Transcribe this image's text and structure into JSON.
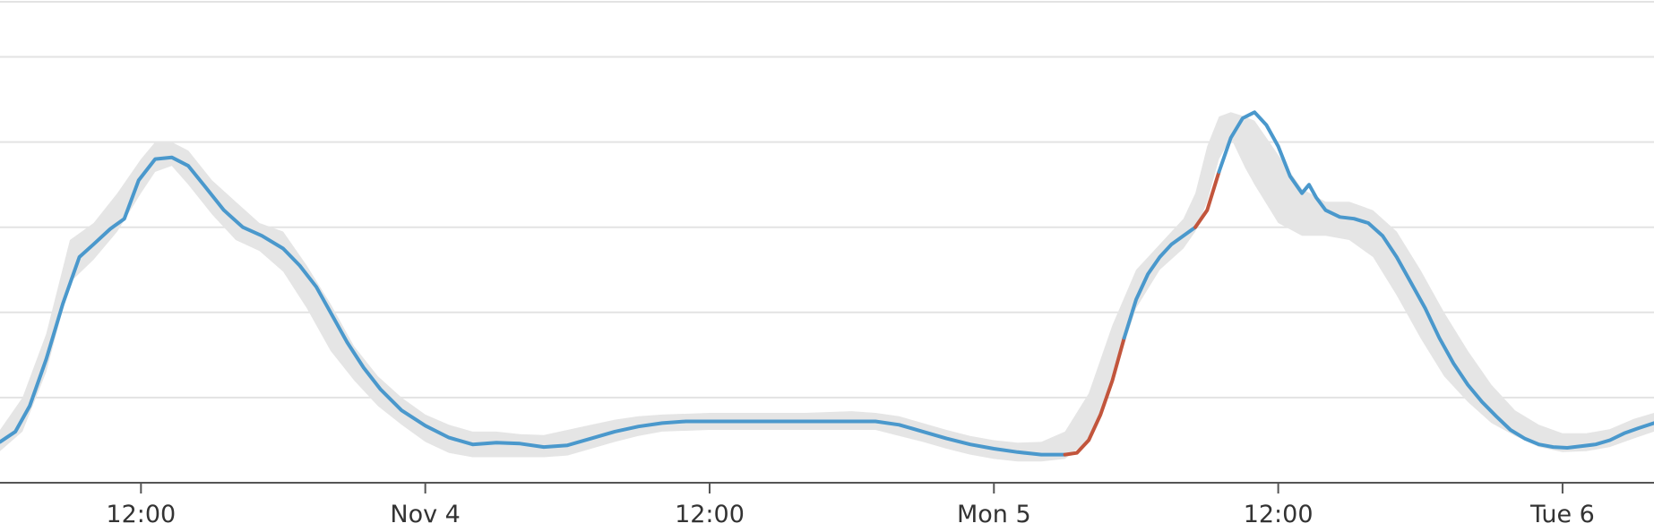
{
  "chart_data": {
    "type": "line",
    "x_unit": "hours",
    "x_tick_labels": [
      {
        "hours": 12,
        "label": "12:00"
      },
      {
        "hours": 24,
        "label": "Nov 4"
      },
      {
        "hours": 36,
        "label": "12:00"
      },
      {
        "hours": 48,
        "label": "Mon 5"
      },
      {
        "hours": 60,
        "label": "12:00"
      },
      {
        "hours": 72,
        "label": "Tue 6"
      }
    ],
    "xlim": [
      6.05,
      75.86
    ],
    "ylim": [
      0,
      5.3
    ],
    "gridlines_y": [
      1,
      2,
      3,
      4,
      5
    ],
    "grid": true,
    "colors": {
      "line": "#4a98cc",
      "anomaly": "#c2553c",
      "band": "#e5e5e5",
      "grid": "#e3e3e3",
      "axis": "#555555"
    },
    "series": [
      {
        "values": [
          [
            6.05,
            0.48
          ],
          [
            6.7,
            0.6
          ],
          [
            7.3,
            0.9
          ],
          [
            8.0,
            1.45
          ],
          [
            8.7,
            2.1
          ],
          [
            9.4,
            2.65
          ],
          [
            10.0,
            2.8
          ],
          [
            10.7,
            2.98
          ],
          [
            11.3,
            3.1
          ],
          [
            11.9,
            3.55
          ],
          [
            12.6,
            3.8
          ],
          [
            13.3,
            3.82
          ],
          [
            14.0,
            3.72
          ],
          [
            14.7,
            3.48
          ],
          [
            15.5,
            3.2
          ],
          [
            16.3,
            3.0
          ],
          [
            17.1,
            2.9
          ],
          [
            18.0,
            2.75
          ],
          [
            18.7,
            2.55
          ],
          [
            19.4,
            2.3
          ],
          [
            20.0,
            2.0
          ],
          [
            20.7,
            1.65
          ],
          [
            21.4,
            1.35
          ],
          [
            22.1,
            1.1
          ],
          [
            23.0,
            0.85
          ],
          [
            24.0,
            0.67
          ],
          [
            25.0,
            0.53
          ],
          [
            26.0,
            0.45
          ],
          [
            27.0,
            0.47
          ],
          [
            28.0,
            0.46
          ],
          [
            29.0,
            0.42
          ],
          [
            30.0,
            0.44
          ],
          [
            31.0,
            0.52
          ],
          [
            32.0,
            0.6
          ],
          [
            33.0,
            0.66
          ],
          [
            34.0,
            0.7
          ],
          [
            35.0,
            0.72
          ],
          [
            36.0,
            0.72
          ],
          [
            38.0,
            0.72
          ],
          [
            40.0,
            0.72
          ],
          [
            42.0,
            0.72
          ],
          [
            43.0,
            0.72
          ],
          [
            44.0,
            0.68
          ],
          [
            45.0,
            0.6
          ],
          [
            46.0,
            0.52
          ],
          [
            47.0,
            0.45
          ],
          [
            48.0,
            0.4
          ],
          [
            49.0,
            0.36
          ],
          [
            50.0,
            0.33
          ],
          [
            51.0,
            0.33
          ]
        ]
      },
      {
        "values": [
          [
            51.0,
            0.33
          ],
          [
            51.5,
            0.35
          ],
          [
            52.0,
            0.5
          ],
          [
            52.5,
            0.8
          ],
          [
            53.0,
            1.2
          ],
          [
            53.5,
            1.7
          ]
        ]
      },
      {
        "values": [
          [
            53.5,
            1.7
          ],
          [
            54.0,
            2.15
          ],
          [
            54.5,
            2.45
          ],
          [
            55.0,
            2.65
          ],
          [
            55.5,
            2.8
          ],
          [
            56.0,
            2.9
          ],
          [
            56.5,
            3.0
          ]
        ]
      },
      {
        "values": [
          [
            56.5,
            3.0
          ],
          [
            57.0,
            3.2
          ],
          [
            57.5,
            3.65
          ]
        ]
      },
      {
        "values": [
          [
            57.5,
            3.65
          ],
          [
            58.0,
            4.05
          ],
          [
            58.5,
            4.28
          ],
          [
            59.0,
            4.35
          ],
          [
            59.5,
            4.2
          ],
          [
            60.0,
            3.95
          ],
          [
            60.5,
            3.6
          ],
          [
            61.0,
            3.4
          ],
          [
            61.3,
            3.5
          ],
          [
            61.6,
            3.35
          ],
          [
            62.0,
            3.2
          ],
          [
            62.6,
            3.12
          ],
          [
            63.2,
            3.1
          ],
          [
            63.8,
            3.05
          ],
          [
            64.4,
            2.9
          ],
          [
            65.0,
            2.65
          ],
          [
            65.6,
            2.35
          ],
          [
            66.2,
            2.05
          ],
          [
            66.8,
            1.7
          ],
          [
            67.4,
            1.4
          ],
          [
            68.0,
            1.15
          ],
          [
            68.6,
            0.95
          ],
          [
            69.2,
            0.78
          ],
          [
            69.8,
            0.62
          ],
          [
            70.4,
            0.52
          ],
          [
            71.0,
            0.45
          ],
          [
            71.6,
            0.42
          ],
          [
            72.2,
            0.41
          ],
          [
            72.8,
            0.43
          ],
          [
            73.4,
            0.45
          ],
          [
            74.0,
            0.5
          ],
          [
            74.6,
            0.58
          ],
          [
            75.2,
            0.64
          ],
          [
            75.86,
            0.7
          ]
        ]
      }
    ],
    "band": [
      [
        6.05,
        0.37,
        0.62
      ],
      [
        7.0,
        0.6,
        1.0
      ],
      [
        8.0,
        1.3,
        1.75
      ],
      [
        9.0,
        2.35,
        2.85
      ],
      [
        10.0,
        2.62,
        3.05
      ],
      [
        11.0,
        2.95,
        3.4
      ],
      [
        12.0,
        3.4,
        3.8
      ],
      [
        12.6,
        3.65,
        4.0
      ],
      [
        13.3,
        3.72,
        4.0
      ],
      [
        14.0,
        3.5,
        3.9
      ],
      [
        15.0,
        3.15,
        3.55
      ],
      [
        16.0,
        2.85,
        3.3
      ],
      [
        17.0,
        2.72,
        3.05
      ],
      [
        18.0,
        2.48,
        2.95
      ],
      [
        19.0,
        2.05,
        2.55
      ],
      [
        20.0,
        1.55,
        2.1
      ],
      [
        21.0,
        1.2,
        1.6
      ],
      [
        22.0,
        0.9,
        1.25
      ],
      [
        23.0,
        0.68,
        1.0
      ],
      [
        24.0,
        0.48,
        0.8
      ],
      [
        25.0,
        0.35,
        0.68
      ],
      [
        26.0,
        0.3,
        0.6
      ],
      [
        27.0,
        0.3,
        0.6
      ],
      [
        28.0,
        0.3,
        0.57
      ],
      [
        29.0,
        0.3,
        0.56
      ],
      [
        30.0,
        0.32,
        0.62
      ],
      [
        31.0,
        0.4,
        0.68
      ],
      [
        32.0,
        0.48,
        0.74
      ],
      [
        33.0,
        0.55,
        0.78
      ],
      [
        34.0,
        0.6,
        0.8
      ],
      [
        36.0,
        0.62,
        0.82
      ],
      [
        38.0,
        0.62,
        0.82
      ],
      [
        40.0,
        0.62,
        0.82
      ],
      [
        42.0,
        0.62,
        0.84
      ],
      [
        43.0,
        0.62,
        0.82
      ],
      [
        44.0,
        0.55,
        0.78
      ],
      [
        45.0,
        0.48,
        0.7
      ],
      [
        46.0,
        0.4,
        0.62
      ],
      [
        47.0,
        0.33,
        0.55
      ],
      [
        48.0,
        0.28,
        0.5
      ],
      [
        49.0,
        0.25,
        0.47
      ],
      [
        50.0,
        0.25,
        0.48
      ],
      [
        51.0,
        0.28,
        0.6
      ],
      [
        52.0,
        0.5,
        1.05
      ],
      [
        53.0,
        1.2,
        1.85
      ],
      [
        54.0,
        2.05,
        2.5
      ],
      [
        55.0,
        2.5,
        2.8
      ],
      [
        56.0,
        2.75,
        3.1
      ],
      [
        56.5,
        2.95,
        3.4
      ],
      [
        57.0,
        3.3,
        3.95
      ],
      [
        57.5,
        3.8,
        4.3
      ],
      [
        58.0,
        4.05,
        4.35
      ],
      [
        58.6,
        3.7,
        4.3
      ],
      [
        59.0,
        3.5,
        4.25
      ],
      [
        60.0,
        3.05,
        3.85
      ],
      [
        61.0,
        2.9,
        3.45
      ],
      [
        62.0,
        2.9,
        3.3
      ],
      [
        63.0,
        2.85,
        3.3
      ],
      [
        64.0,
        2.65,
        3.2
      ],
      [
        65.0,
        2.2,
        2.95
      ],
      [
        66.0,
        1.7,
        2.5
      ],
      [
        67.0,
        1.25,
        2.0
      ],
      [
        68.0,
        0.95,
        1.55
      ],
      [
        69.0,
        0.7,
        1.15
      ],
      [
        70.0,
        0.55,
        0.85
      ],
      [
        71.0,
        0.42,
        0.68
      ],
      [
        72.0,
        0.36,
        0.58
      ],
      [
        73.0,
        0.37,
        0.58
      ],
      [
        74.0,
        0.42,
        0.63
      ],
      [
        75.0,
        0.52,
        0.75
      ],
      [
        75.86,
        0.6,
        0.82
      ]
    ]
  }
}
